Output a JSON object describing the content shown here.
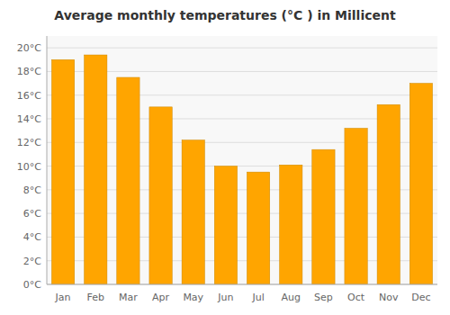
{
  "chart_data": {
    "type": "bar",
    "title": "Average monthly temperatures (°C ) in Millicent",
    "categories": [
      "Jan",
      "Feb",
      "Mar",
      "Apr",
      "May",
      "Jun",
      "Jul",
      "Aug",
      "Sep",
      "Oct",
      "Nov",
      "Dec"
    ],
    "values": [
      19.0,
      19.4,
      17.5,
      15.0,
      12.2,
      10.0,
      9.5,
      10.1,
      11.4,
      13.2,
      15.2,
      17.0
    ],
    "color": "#FFA500",
    "ylim": [
      0,
      21
    ],
    "yticks": [
      {
        "value": 0,
        "label": "0°C"
      },
      {
        "value": 2,
        "label": "2°C"
      },
      {
        "value": 4,
        "label": "4°C"
      },
      {
        "value": 6,
        "label": "6°C"
      },
      {
        "value": 8,
        "label": "8°C"
      },
      {
        "value": 10,
        "label": "10°C"
      },
      {
        "value": 12,
        "label": "12°C"
      },
      {
        "value": 14,
        "label": "14°C"
      },
      {
        "value": 16,
        "label": "16°C"
      },
      {
        "value": 18,
        "label": "18°C"
      },
      {
        "value": 20,
        "label": "20°C"
      }
    ],
    "grid": true
  }
}
